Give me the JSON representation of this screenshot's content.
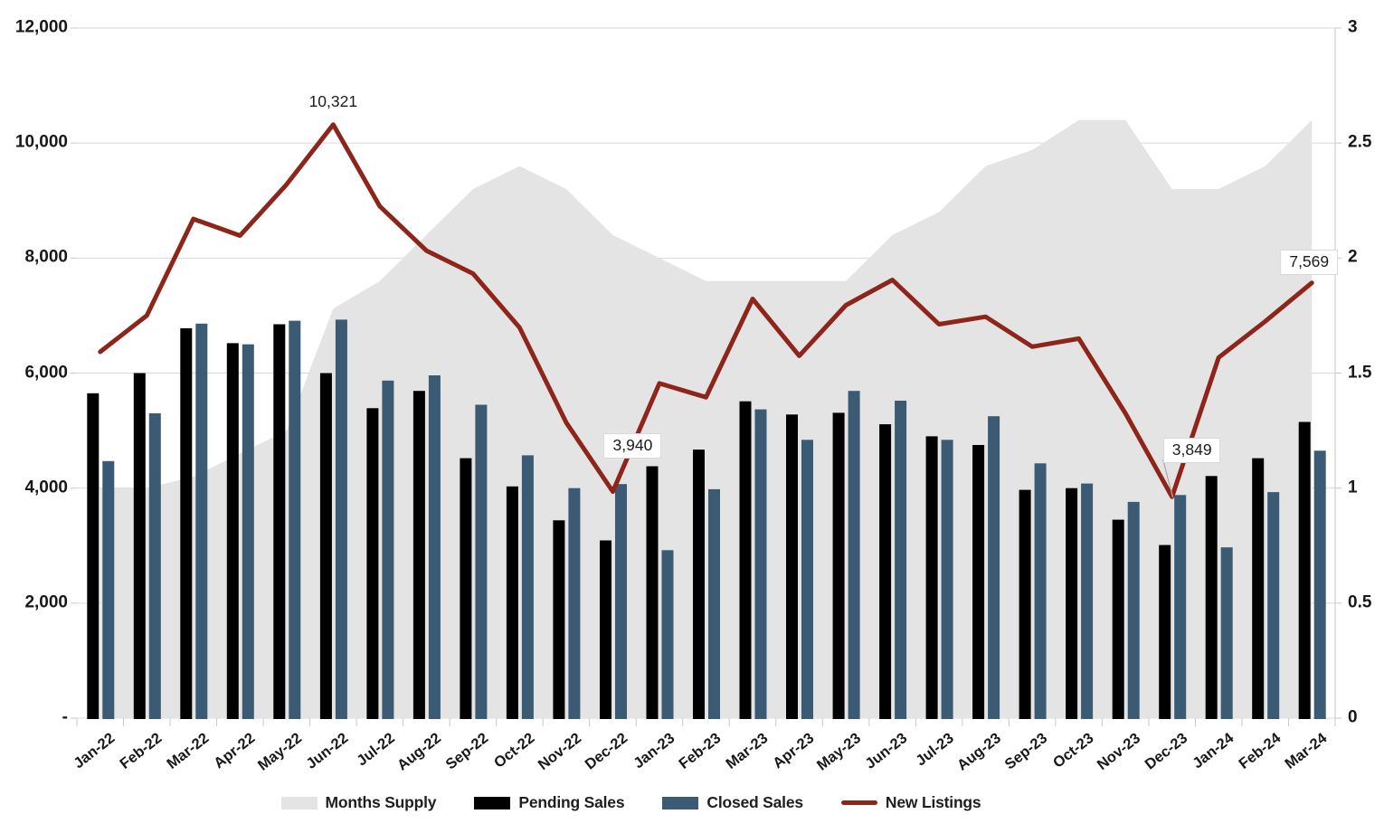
{
  "chart_data": {
    "type": "combo",
    "title": "",
    "xlabel": "",
    "ylabel_left": "",
    "ylabel_right": "",
    "grid": true,
    "categories": [
      "Jan-22",
      "Feb-22",
      "Mar-22",
      "Apr-22",
      "May-22",
      "Jun-22",
      "Jul-22",
      "Aug-22",
      "Sep-22",
      "Oct-22",
      "Nov-22",
      "Dec-22",
      "Jan-23",
      "Feb-23",
      "Mar-23",
      "Apr-23",
      "May-23",
      "Jun-23",
      "Jul-23",
      "Aug-23",
      "Sep-23",
      "Oct-23",
      "Nov-23",
      "Dec-23",
      "Jan-24",
      "Feb-24",
      "Mar-24"
    ],
    "series": [
      {
        "name": "Months Supply",
        "type": "area",
        "axis": "right",
        "color": "#E4E4E4",
        "values": [
          1.0,
          1.0,
          1.05,
          1.15,
          1.25,
          1.78,
          1.9,
          2.1,
          2.3,
          2.4,
          2.3,
          2.1,
          2.0,
          1.9,
          1.9,
          1.9,
          1.9,
          2.1,
          2.2,
          2.4,
          2.47,
          2.6,
          2.6,
          2.3,
          2.3,
          2.4,
          2.6
        ]
      },
      {
        "name": "Pending Sales",
        "type": "bar",
        "axis": "left",
        "color": "#000000",
        "values": [
          5650,
          6000,
          6780,
          6520,
          6850,
          6000,
          5390,
          5690,
          4520,
          4030,
          3440,
          3090,
          4380,
          4670,
          5510,
          5280,
          5310,
          5110,
          4900,
          4750,
          3970,
          4000,
          3450,
          3010,
          4210,
          4520,
          5150
        ]
      },
      {
        "name": "Closed Sales",
        "type": "bar",
        "axis": "left",
        "color": "#3B5A74",
        "values": [
          4470,
          5300,
          6860,
          6500,
          6910,
          6930,
          5870,
          5960,
          5450,
          4570,
          4000,
          4070,
          2920,
          3980,
          5370,
          4840,
          5690,
          5520,
          4840,
          5250,
          4430,
          4080,
          3760,
          3880,
          2970,
          3930,
          4650
        ]
      },
      {
        "name": "New Listings",
        "type": "line",
        "axis": "left",
        "color": "#8E251B",
        "values": [
          6370,
          7000,
          8680,
          8390,
          9280,
          10321,
          8900,
          8130,
          7730,
          6790,
          5140,
          3940,
          5820,
          5580,
          7290,
          6300,
          7180,
          7620,
          6850,
          6980,
          6460,
          6600,
          5300,
          3849,
          6270,
          6900,
          7569
        ]
      }
    ],
    "axes": {
      "left": {
        "min": 0,
        "max": 12000,
        "ticks": [
          {
            "label": "-",
            "value": 0
          },
          {
            "label": "2,000",
            "value": 2000
          },
          {
            "label": "4,000",
            "value": 4000
          },
          {
            "label": "6,000",
            "value": 6000
          },
          {
            "label": "8,000",
            "value": 8000
          },
          {
            "label": "10,000",
            "value": 10000
          },
          {
            "label": "12,000",
            "value": 12000
          }
        ]
      },
      "right": {
        "min": 0,
        "max": 3,
        "ticks": [
          {
            "label": "0",
            "value": 0
          },
          {
            "label": "0.5",
            "value": 0.5
          },
          {
            "label": "1",
            "value": 1
          },
          {
            "label": "1.5",
            "value": 1.5
          },
          {
            "label": "2",
            "value": 2
          },
          {
            "label": "2.5",
            "value": 2.5
          },
          {
            "label": "3",
            "value": 3
          }
        ]
      }
    },
    "annotations": [
      {
        "text": "10,321",
        "category": "Jun-22",
        "value": 10321,
        "style": "plain"
      },
      {
        "text": "3,940",
        "category": "Dec-22",
        "value": 3940,
        "style": "boxed"
      },
      {
        "text": "3,849",
        "category": "Dec-23",
        "value": 3849,
        "style": "boxed",
        "leader": true
      },
      {
        "text": "7,569",
        "category": "Mar-24",
        "value": 7569,
        "style": "boxed"
      }
    ],
    "legend": {
      "position": "bottom",
      "items": [
        {
          "label": "Months Supply",
          "series": 0
        },
        {
          "label": "Pending Sales",
          "series": 1
        },
        {
          "label": "Closed Sales",
          "series": 2
        },
        {
          "label": "New Listings",
          "series": 3
        }
      ]
    },
    "colors": {
      "grid": "#D9D9D9",
      "axis_line": "#CFCFCF",
      "tick": "#C9C9C9",
      "text": "#181818",
      "leader_line": "#B5A6A4"
    }
  }
}
